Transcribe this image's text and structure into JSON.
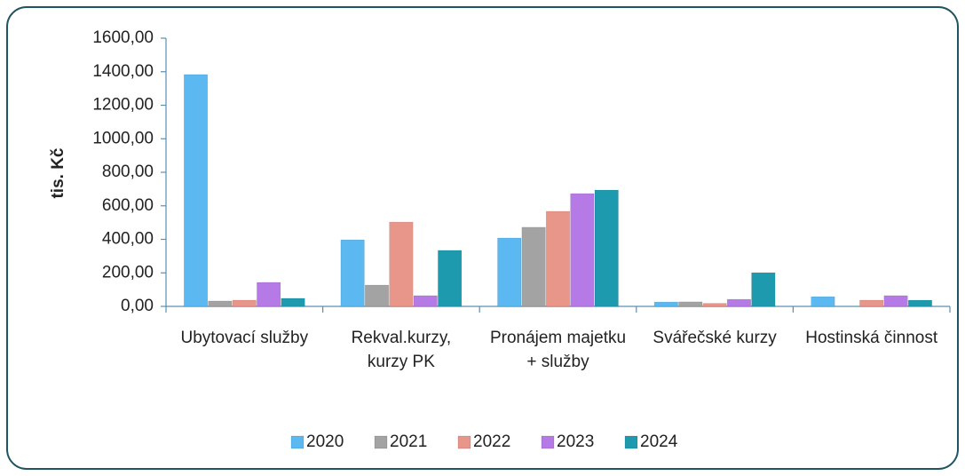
{
  "chart_data": {
    "type": "bar",
    "y_label": "tis. Kč",
    "categories": [
      "Ubytovací služby",
      "Rekval.kurzy, kurzy PK",
      "Pronájem majetku + služby",
      "Svářečské kurzy",
      "Hostinská činnost"
    ],
    "series": [
      {
        "name": "2020",
        "color": "#5bb8f0",
        "values": [
          1383,
          397,
          408,
          26,
          58
        ]
      },
      {
        "name": "2021",
        "color": "#a3a3a3",
        "values": [
          32,
          127,
          472,
          27,
          0
        ]
      },
      {
        "name": "2022",
        "color": "#e8958a",
        "values": [
          37,
          503,
          567,
          18,
          37
        ]
      },
      {
        "name": "2023",
        "color": "#b57ae6",
        "values": [
          143,
          64,
          673,
          42,
          64
        ]
      },
      {
        "name": "2024",
        "color": "#1e9aae",
        "values": [
          48,
          334,
          694,
          201,
          37
        ]
      }
    ],
    "ylim": [
      0,
      1600
    ],
    "yticks": [
      {
        "value": 0,
        "label": "0,00"
      },
      {
        "value": 200,
        "label": "200,00"
      },
      {
        "value": 400,
        "label": "400,00"
      },
      {
        "value": 600,
        "label": "600,00"
      },
      {
        "value": 800,
        "label": "800,00"
      },
      {
        "value": 1000,
        "label": "1000,00"
      },
      {
        "value": 1200,
        "label": "1200,00"
      },
      {
        "value": 1400,
        "label": "1400,00"
      },
      {
        "value": 1600,
        "label": "1600,00"
      }
    ],
    "legend": "bottom"
  }
}
